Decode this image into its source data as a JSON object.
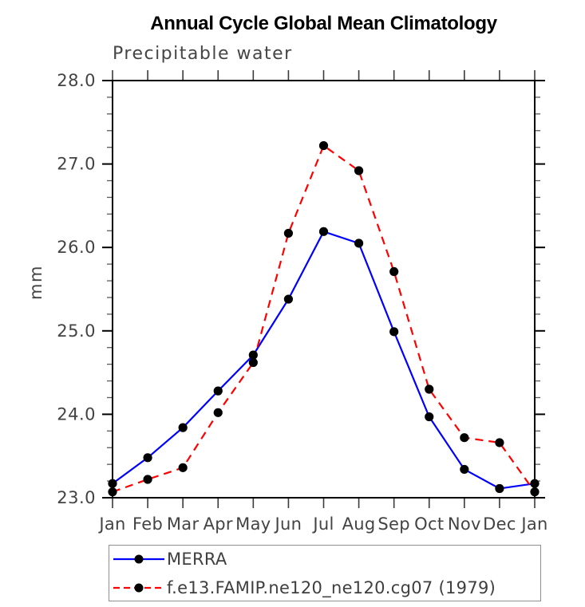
{
  "chart_data": {
    "type": "line",
    "title": "Annual Cycle Global Mean Climatology",
    "subtitle": "Precipitable water",
    "ylabel": "mm",
    "xlabel": "",
    "categories": [
      "Jan",
      "Feb",
      "Mar",
      "Apr",
      "May",
      "Jun",
      "Jul",
      "Aug",
      "Sep",
      "Oct",
      "Nov",
      "Dec",
      "Jan"
    ],
    "series": [
      {
        "name": "MERRA",
        "line_style": "solid",
        "color": "#0000ff",
        "marker": "filled-circle",
        "marker_color": "#000000",
        "values": [
          23.17,
          23.48,
          23.84,
          24.28,
          24.71,
          25.38,
          26.19,
          26.05,
          24.99,
          23.97,
          23.34,
          23.11,
          23.17
        ]
      },
      {
        "name": "f.e13.FAMIP.ne120_ne120.cg07 (1979)",
        "line_style": "dashed",
        "color": "#ff0000",
        "marker": "filled-circle",
        "marker_color": "#000000",
        "values": [
          23.07,
          23.22,
          23.36,
          24.02,
          24.62,
          26.17,
          27.22,
          26.92,
          25.71,
          24.3,
          23.72,
          23.66,
          23.07
        ]
      }
    ],
    "ylim": [
      23.0,
      28.0
    ],
    "yticks": [
      23.0,
      24.0,
      25.0,
      26.0,
      27.0,
      28.0
    ],
    "ytick_labels": [
      "23.0",
      "24.0",
      "25.0",
      "26.0",
      "27.0",
      "28.0"
    ],
    "yminor_step": 0.2,
    "grid": false,
    "axis_color": "#000000",
    "legend_position": "bottom-left-box"
  }
}
